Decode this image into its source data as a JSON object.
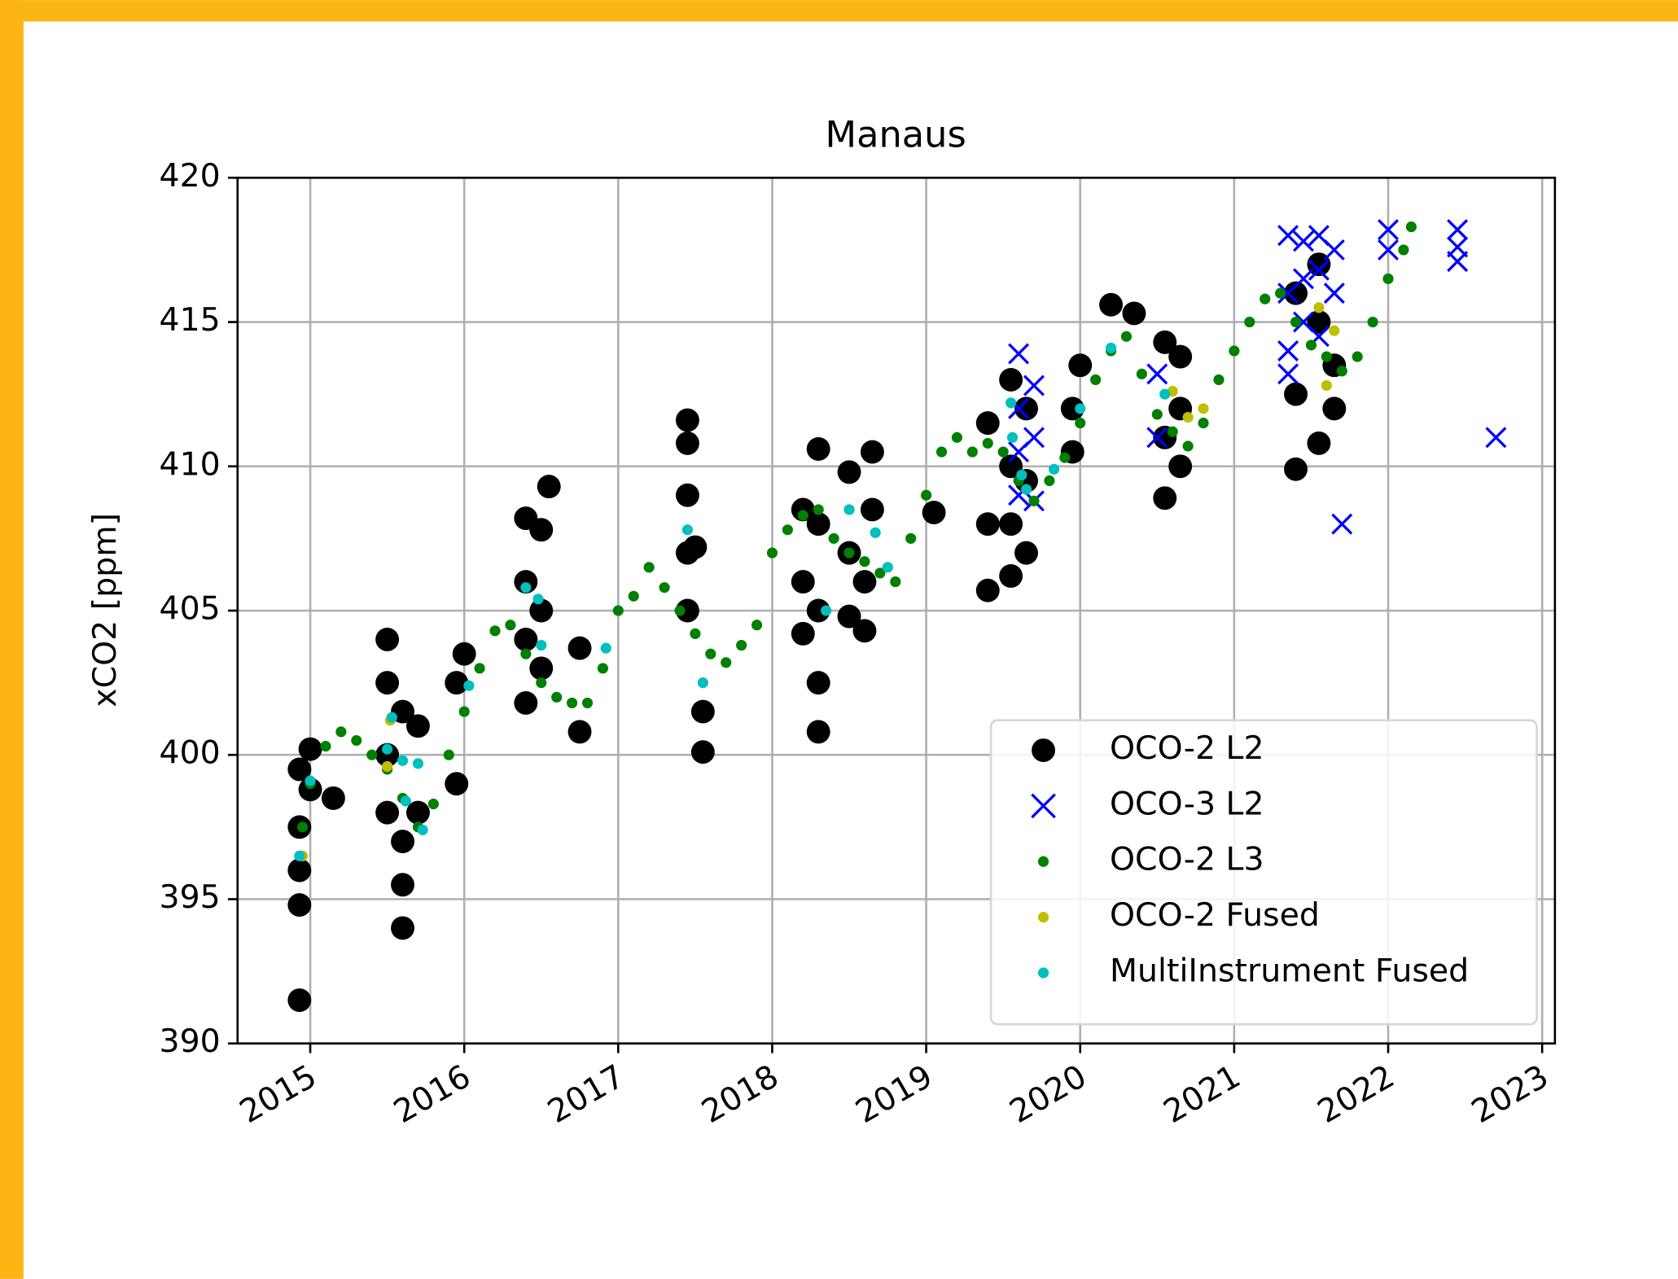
{
  "chart_data": {
    "type": "scatter",
    "title": "Manaus",
    "ylabel": "xCO2 [ppm]",
    "xlim": [
      2014.528,
      2023.083
    ],
    "ylim": [
      390,
      420
    ],
    "xticks": [
      2015,
      2016,
      2017,
      2018,
      2019,
      2020,
      2021,
      2022,
      2023
    ],
    "yticks": [
      390,
      395,
      400,
      405,
      410,
      415,
      420
    ],
    "grid": true,
    "legend": "lower right",
    "series": [
      {
        "name": "OCO-2 L2",
        "color": "#000000",
        "marker": "o",
        "x": [
          2014.93,
          2014.93,
          2014.93,
          2014.93,
          2014.93,
          2015.0,
          2015.0,
          2015.15,
          2015.5,
          2015.5,
          2015.5,
          2015.5,
          2015.6,
          2015.6,
          2015.6,
          2015.6,
          2015.7,
          2015.7,
          2015.95,
          2015.95,
          2016.0,
          2016.4,
          2016.4,
          2016.4,
          2016.4,
          2016.5,
          2016.5,
          2016.5,
          2016.55,
          2016.75,
          2016.75,
          2017.45,
          2017.45,
          2017.45,
          2017.45,
          2017.45,
          2017.5,
          2017.55,
          2017.55,
          2018.2,
          2018.2,
          2018.2,
          2018.3,
          2018.3,
          2018.3,
          2018.3,
          2018.3,
          2018.5,
          2018.5,
          2018.5,
          2018.6,
          2018.6,
          2018.65,
          2018.65,
          2019.05,
          2019.4,
          2019.4,
          2019.4,
          2019.55,
          2019.55,
          2019.55,
          2019.55,
          2019.65,
          2019.65,
          2019.65,
          2019.95,
          2019.95,
          2020.0,
          2020.2,
          2020.35,
          2020.55,
          2020.55,
          2020.55,
          2020.65,
          2020.65,
          2020.65,
          2021.4,
          2021.4,
          2021.4,
          2021.55,
          2021.55,
          2021.55,
          2021.65,
          2021.65
        ],
        "values": [
          391.5,
          394.8,
          396,
          397.5,
          399.5,
          400.2,
          398.8,
          398.5,
          404,
          402.5,
          400,
          398,
          394,
          395.5,
          397,
          401.5,
          398,
          401,
          402.5,
          399,
          403.5,
          401.8,
          404,
          406,
          408.2,
          407.8,
          405,
          403,
          409.3,
          400.8,
          403.7,
          411.6,
          410.8,
          409,
          407,
          405,
          407.2,
          400.1,
          401.5,
          404.2,
          406,
          408.5,
          410.6,
          408,
          405,
          402.5,
          400.8,
          409.8,
          407,
          404.8,
          404.3,
          406,
          410.5,
          408.5,
          408.4,
          405.7,
          408,
          411.5,
          406.2,
          408,
          410,
          413,
          407,
          409.5,
          412,
          410.5,
          412,
          413.5,
          415.6,
          415.3,
          408.9,
          411,
          414.3,
          413.8,
          410,
          412,
          412.5,
          409.9,
          416,
          417,
          415,
          410.8,
          412,
          413.5
        ]
      },
      {
        "name": "OCO-3 L2",
        "color": "#0000ff",
        "marker": "x",
        "x": [
          2019.6,
          2019.6,
          2019.6,
          2019.6,
          2019.7,
          2019.7,
          2019.7,
          2020.5,
          2020.5,
          2021.35,
          2021.35,
          2021.35,
          2021.35,
          2021.45,
          2021.45,
          2021.45,
          2021.55,
          2021.55,
          2021.55,
          2021.65,
          2021.65,
          2021.7,
          2022.0,
          2022.0,
          2022.45,
          2022.45,
          2022.45,
          2022.7
        ],
        "values": [
          413.9,
          412,
          410.5,
          409,
          412.8,
          411,
          408.8,
          413.2,
          411,
          418,
          416,
          414,
          413.2,
          417.8,
          416.5,
          415,
          418,
          416.8,
          414.5,
          417.5,
          416,
          408,
          418.2,
          417.5,
          418.2,
          417.6,
          417.1,
          411
        ]
      },
      {
        "name": "OCO-2 L3",
        "color": "#008000",
        "marker": ".",
        "x": [
          2014.95,
          2015.0,
          2015.1,
          2015.2,
          2015.3,
          2015.4,
          2015.5,
          2015.6,
          2015.7,
          2015.8,
          2015.9,
          2016.0,
          2016.1,
          2016.2,
          2016.3,
          2016.4,
          2016.5,
          2016.6,
          2016.7,
          2016.8,
          2016.9,
          2017.0,
          2017.1,
          2017.2,
          2017.3,
          2017.4,
          2017.5,
          2017.6,
          2017.7,
          2017.8,
          2017.9,
          2018.0,
          2018.1,
          2018.2,
          2018.3,
          2018.4,
          2018.5,
          2018.6,
          2018.7,
          2018.8,
          2018.9,
          2019.0,
          2019.1,
          2019.2,
          2019.3,
          2019.4,
          2019.5,
          2019.6,
          2019.7,
          2019.8,
          2019.9,
          2020.0,
          2020.1,
          2020.2,
          2020.3,
          2020.4,
          2020.5,
          2020.6,
          2020.7,
          2020.8,
          2020.9,
          2021.0,
          2021.1,
          2021.2,
          2021.3,
          2021.4,
          2021.5,
          2021.6,
          2021.7,
          2021.8,
          2021.9,
          2022.0,
          2022.1,
          2022.15
        ],
        "values": [
          397.5,
          399,
          400.3,
          400.8,
          400.5,
          400,
          399.5,
          398.5,
          397.5,
          398.3,
          400,
          401.5,
          403,
          404.3,
          404.5,
          403.5,
          402.5,
          402,
          401.8,
          401.8,
          403,
          405,
          405.5,
          406.5,
          405.8,
          405,
          404.2,
          403.5,
          403.2,
          403.8,
          404.5,
          407,
          407.8,
          408.3,
          408.5,
          407.5,
          407,
          406.7,
          406.3,
          406,
          407.5,
          409,
          410.5,
          411,
          410.5,
          410.8,
          410.5,
          409.5,
          408.8,
          409.5,
          410.3,
          411.5,
          413,
          414,
          414.5,
          413.2,
          411.8,
          411.2,
          410.7,
          411.5,
          413,
          414,
          415,
          415.8,
          416,
          415,
          414.2,
          413.8,
          413.3,
          413.8,
          415,
          416.5,
          417.5,
          418.3
        ]
      },
      {
        "name": "OCO-2 Fused",
        "color": "#bfbf00",
        "marker": ".",
        "x": [
          2014.95,
          2015.5,
          2015.52,
          2019.65,
          2020.6,
          2020.7,
          2020.8,
          2021.55,
          2021.6,
          2021.65
        ],
        "values": [
          396.5,
          399.6,
          401.2,
          409.2,
          412.6,
          411.7,
          412,
          415.5,
          412.8,
          414.7
        ]
      },
      {
        "name": "MultiInstrument Fused",
        "color": "#00bfbf",
        "marker": ".",
        "x": [
          2014.93,
          2015.0,
          2015.5,
          2015.53,
          2015.6,
          2015.62,
          2015.7,
          2015.73,
          2016.03,
          2016.4,
          2016.48,
          2016.5,
          2016.92,
          2017.45,
          2017.55,
          2018.35,
          2018.5,
          2018.67,
          2018.75,
          2019.55,
          2019.56,
          2019.62,
          2019.65,
          2019.83,
          2020.0,
          2020.2,
          2020.55
        ],
        "values": [
          396.5,
          399.1,
          400.2,
          401.3,
          399.8,
          398.4,
          399.7,
          397.4,
          402.4,
          405.8,
          405.4,
          403.8,
          403.7,
          407.8,
          402.5,
          405,
          408.5,
          407.7,
          406.5,
          412.2,
          411,
          409.7,
          409.2,
          409.9,
          412,
          414.1,
          412.5
        ]
      }
    ]
  }
}
